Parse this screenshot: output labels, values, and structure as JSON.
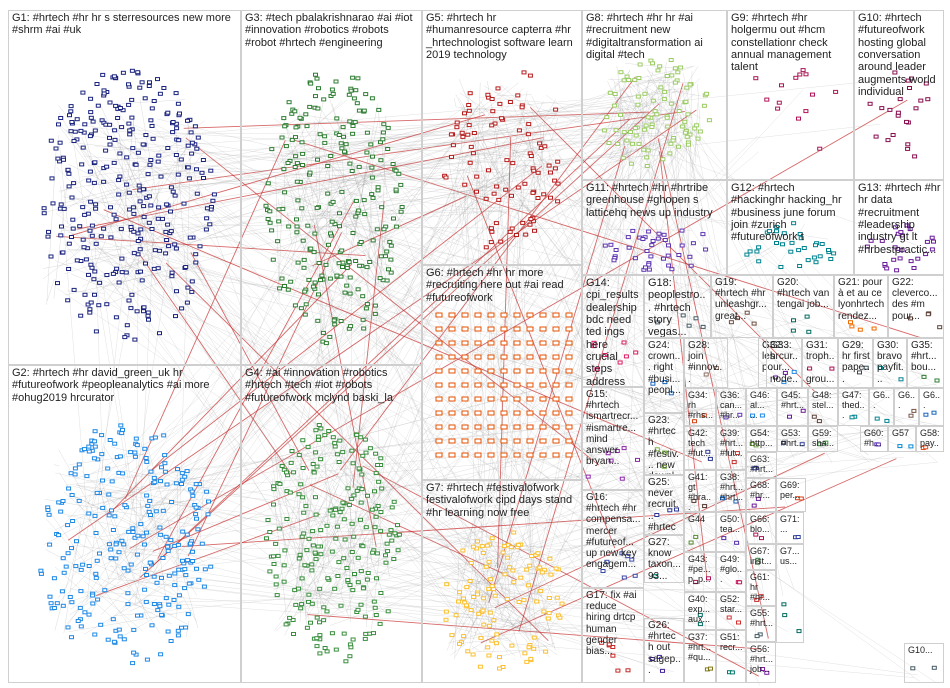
{
  "groups": [
    {
      "id": "g1",
      "label": "G1: #hrtech #hr hr s sterresources new more #shrm #ai #uk",
      "color": "#1a237e",
      "n": 320
    },
    {
      "id": "g2",
      "label": "G2: #hrtech #hr david_green_uk hr #futureofwork #peopleanalytics #ai more #ohug2019 hrcurator",
      "color": "#1e88e5",
      "n": 260
    },
    {
      "id": "g3",
      "label": "G3: #tech pbalakrishnarao #ai #iot #innovation #robotics #robots #robot #hrtech #engineering",
      "color": "#2e7d32",
      "n": 240
    },
    {
      "id": "g4",
      "label": "G4: #ai #innovation #robotics #hrtech #tech #iot #robots #futureofwork mclynd baski_la",
      "color": "#388e3c",
      "n": 230
    },
    {
      "id": "g5",
      "label": "G5: #hrtech hr #humanresource capterra #hr _hrtechnologist software learn 2019 technology",
      "color": "#b71c1c",
      "n": 90
    },
    {
      "id": "g6",
      "label": "G6: #hrtech #hr hr more #recruiting here out #ai read #futureofwork",
      "color": "#e65100",
      "n": 0
    },
    {
      "id": "g7",
      "label": "G7: #hrtech #festivalofwork festivalofwork cipd days stand #hr learning now free",
      "color": "#fbc02d",
      "n": 110
    },
    {
      "id": "g8",
      "label": "G8: #hrtech #hr hr #ai #recruitment new #digitaltransformation ai digital #tech",
      "color": "#9ccc65",
      "n": 90
    },
    {
      "id": "g9",
      "label": "G9: #hrtech #hr holgermu out #hcm constellationr check annual management talent",
      "color": "#ad1457",
      "n": 14
    },
    {
      "id": "g10",
      "label": "G10: #hrtech #futureofwork hosting global conversation around leader augments world individual",
      "color": "#880e4f",
      "n": 22
    },
    {
      "id": "g11",
      "label": "G11: #hrtech #hr #hrtribe greenhouse #ghopen s latticehq news up industry",
      "color": "#5e35b1",
      "n": 40
    },
    {
      "id": "g12",
      "label": "G12: #hrtech #hackinghr hacking_hr #business june forum join #zurich #futureofwork t",
      "color": "#00838f",
      "n": 32
    },
    {
      "id": "g13",
      "label": "G13: #hrtech #hr hr data #recruitment #leadership industry gt lt #hrbestpractic...",
      "color": "#6a1b9a",
      "n": 26
    },
    {
      "id": "g14",
      "label": "G14: cpi_results dealership bdc need ted ings here crucial steps address",
      "color": "#d81b60",
      "n": 0
    },
    {
      "id": "g15",
      "label": "G15: #hrtech ismartrecr... #ismartre... mind answer bryan...",
      "color": "#8e24aa",
      "n": 0
    },
    {
      "id": "g16",
      "label": "G16: #hrtech #hr compensa... mercer #futureof... up new key engagem...",
      "color": "#3949ab",
      "n": 0
    },
    {
      "id": "g17",
      "label": "G17: fix #ai reduce hiring drtcp human gender bias...",
      "color": "#c62828",
      "n": 0
    },
    {
      "id": "g18",
      "label": "G18: peoplestro... #hrtech story vegas...",
      "color": "#455a64",
      "n": 0
    },
    {
      "id": "g19",
      "label": "G19: #hrtech #hr unleashgr... great...",
      "color": "#6d4c41",
      "n": 0
    },
    {
      "id": "g20",
      "label": "G20: #hrtech van tengai job...",
      "color": "#00695c",
      "n": 0
    },
    {
      "id": "g21",
      "label": "G21: pour à et au ce lyonhrtech rendez...",
      "color": "#ef6c00",
      "n": 0
    },
    {
      "id": "g22",
      "label": "G22: cleverco... des #m pour...",
      "color": "#5d4037",
      "n": 0
    },
    {
      "id": "g23",
      "label": "G23: #hrtech #festiv... new downl...",
      "color": "#7cb342",
      "n": 0
    },
    {
      "id": "g24",
      "label": "G24: crown... right #busi... peopl...",
      "color": "#1565c0",
      "n": 0
    },
    {
      "id": "g25",
      "label": "G25: never recruit... #hrtech #ats ll...",
      "color": "#283593",
      "n": 0
    },
    {
      "id": "g26",
      "label": "G26: #hrtech out sagep...",
      "color": "#4527a0",
      "n": 0
    },
    {
      "id": "g27",
      "label": "G27: know taxon... 93...",
      "color": "#00897b",
      "n": 0
    },
    {
      "id": "g28",
      "label": "G28: join #innov...",
      "color": "#8d6e63",
      "n": 0
    },
    {
      "id": "g29",
      "label": "G29: hr first pape...",
      "color": "#37474f",
      "n": 0
    },
    {
      "id": "g30",
      "label": "G30: bravo payfit...",
      "color": "#00838f",
      "n": 0
    },
    {
      "id": "g31",
      "label": "G31: troph... grou...",
      "color": "#ad1457",
      "n": 0
    },
    {
      "id": "g32",
      "label": "G32: les pour...",
      "color": "#6a1b9a",
      "n": 0
    },
    {
      "id": "g33",
      "label": "G33: hrcur... node...",
      "color": "#1e88e5",
      "n": 0
    },
    {
      "id": "g34",
      "label": "G34: rh #rhs...",
      "color": "#d84315",
      "n": 0
    },
    {
      "id": "g35",
      "label": "G35: #hrt... bou...",
      "color": "#2e7d32",
      "n": 0
    },
    {
      "id": "g36",
      "label": "G36: can... #hr...",
      "color": "#5e35b1",
      "n": 0
    },
    {
      "id": "g37",
      "label": "G37: #hrt... #qu...",
      "color": "#827717",
      "n": 0
    },
    {
      "id": "g38",
      "label": "G38: #hrt... #hrt...",
      "color": "#1565c0",
      "n": 0
    },
    {
      "id": "g39",
      "label": "G39: #hrt... #fut...",
      "color": "#c62828",
      "n": 0
    },
    {
      "id": "g40",
      "label": "G40: exp... aux...",
      "color": "#00695c",
      "n": 0
    },
    {
      "id": "g41",
      "label": "G41: gt #hra...",
      "color": "#4e342e",
      "n": 0
    },
    {
      "id": "g42",
      "label": "G42: tech #fut...",
      "color": "#283593",
      "n": 0
    },
    {
      "id": "g43",
      "label": "G43: #pe... p_p...",
      "color": "#ad1457",
      "n": 0
    },
    {
      "id": "g44",
      "label": "G44",
      "color": "#558b2f",
      "n": 0
    },
    {
      "id": "g45",
      "label": "G45: #hrt...",
      "color": "#6a1b9a",
      "n": 0
    },
    {
      "id": "g46",
      "label": "G46: al... ...",
      "color": "#1e88e5",
      "n": 0
    },
    {
      "id": "g47",
      "label": "G47: thed...",
      "color": "#00838f",
      "n": 0
    },
    {
      "id": "g48",
      "label": "G48: stel...",
      "color": "#5d4037",
      "n": 0
    },
    {
      "id": "g49",
      "label": "G49: #glo...",
      "color": "#c2185b",
      "n": 0
    },
    {
      "id": "g50",
      "label": "G50: tea...",
      "color": "#512da8",
      "n": 0
    },
    {
      "id": "g51",
      "label": "G51: recr...",
      "color": "#00796b",
      "n": 0
    },
    {
      "id": "g52",
      "label": "G52: star...",
      "color": "#d32f2f",
      "n": 0
    },
    {
      "id": "g53",
      "label": "G53: #hrt...",
      "color": "#303f9f",
      "n": 0
    },
    {
      "id": "g54",
      "label": "G54: http...",
      "color": "#689f38",
      "n": 0
    },
    {
      "id": "g55",
      "label": "G55: #hrt...",
      "color": "#455a64",
      "n": 0
    },
    {
      "id": "g56",
      "label": "G56: #hrt... job...",
      "color": "#7b1fa2",
      "n": 0
    },
    {
      "id": "g57",
      "label": "G57",
      "color": "#0288d1",
      "n": 0
    },
    {
      "id": "g58",
      "label": "G58: pay...",
      "color": "#e64a19",
      "n": 0
    },
    {
      "id": "g59",
      "label": "G59: sha...",
      "color": "#388e3c",
      "n": 0
    },
    {
      "id": "g60",
      "label": "G60: #h...",
      "color": "#5e35b1",
      "n": 0
    },
    {
      "id": "g61",
      "label": "G61: hr #hr...",
      "color": "#c62828",
      "n": 0
    },
    {
      "id": "g62",
      "label": "G6...",
      "color": "#00838f",
      "n": 0
    },
    {
      "id": "g63",
      "label": "G63: #hrt...",
      "color": "#283593",
      "n": 0
    },
    {
      "id": "g64",
      "label": "G6...",
      "color": "#795548",
      "n": 0
    },
    {
      "id": "g65",
      "label": "G6...",
      "color": "#1565c0",
      "n": 0
    },
    {
      "id": "g66",
      "label": "G66: blo...",
      "color": "#ad1457",
      "n": 0
    },
    {
      "id": "g67",
      "label": "G67: inst...",
      "color": "#2e7d32",
      "n": 0
    },
    {
      "id": "g68",
      "label": "G68: #hr...",
      "color": "#6a1b9a",
      "n": 0
    },
    {
      "id": "g69",
      "label": "G69: per...",
      "color": "#d84315",
      "n": 0
    },
    {
      "id": "g7x",
      "label": "G7... us...",
      "color": "#00695c",
      "n": 0
    },
    {
      "id": "g71",
      "label": "G71: ...",
      "color": "#303f9f",
      "n": 0
    },
    {
      "id": "g10x",
      "label": "G10...",
      "color": "#455a64",
      "n": 0
    }
  ]
}
